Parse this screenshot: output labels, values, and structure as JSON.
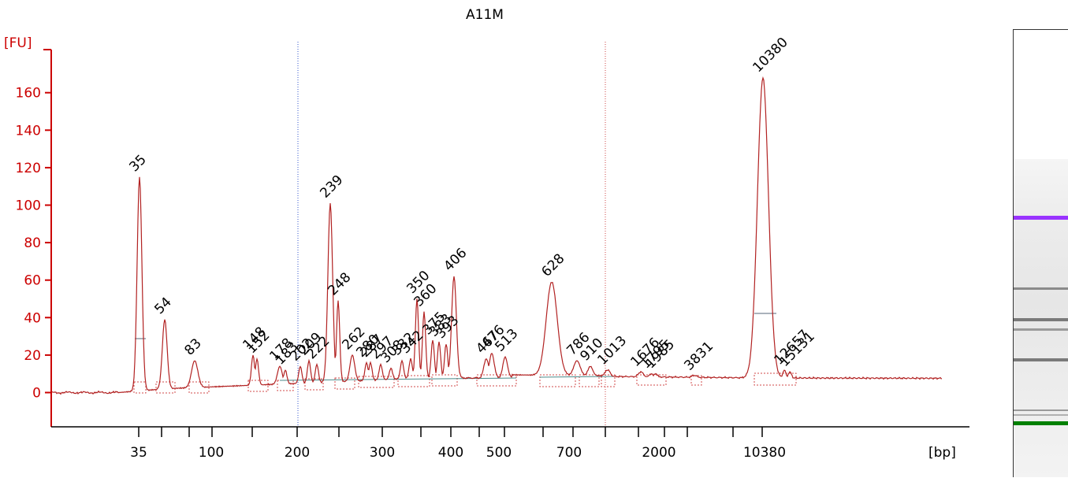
{
  "chart_data": {
    "type": "line",
    "title": "A11M",
    "ylabel": "[FU]",
    "xlabel": "[bp]",
    "ylim": [
      -15,
      175
    ],
    "yticks": [
      0,
      20,
      40,
      60,
      80,
      100,
      120,
      140,
      160
    ],
    "x_tick_labels": [
      "35",
      "100",
      "200",
      "300",
      "400",
      "500",
      "700",
      "2000",
      "10380"
    ],
    "grid": false,
    "marker_peaks": [
      {
        "label": "35",
        "fu": 115,
        "color": "#008000"
      },
      {
        "label": "10380",
        "fu": 168,
        "color": "#9933ff"
      }
    ],
    "peaks": [
      {
        "label": "54",
        "fu": 39
      },
      {
        "label": "83",
        "fu": 17
      },
      {
        "label": "148",
        "fu": 20
      },
      {
        "label": "152",
        "fu": 18
      },
      {
        "label": "178",
        "fu": 14
      },
      {
        "label": "183",
        "fu": 12
      },
      {
        "label": "202",
        "fu": 14
      },
      {
        "label": "209",
        "fu": 17
      },
      {
        "label": "222",
        "fu": 15
      },
      {
        "label": "239",
        "fu": 101
      },
      {
        "label": "248",
        "fu": 49
      },
      {
        "label": "262",
        "fu": 20
      },
      {
        "label": "280",
        "fu": 16
      },
      {
        "label": "287",
        "fu": 16
      },
      {
        "label": "297",
        "fu": 15
      },
      {
        "label": "308",
        "fu": 13
      },
      {
        "label": "332",
        "fu": 17
      },
      {
        "label": "342",
        "fu": 18
      },
      {
        "label": "350",
        "fu": 50
      },
      {
        "label": "360",
        "fu": 43
      },
      {
        "label": "375",
        "fu": 28
      },
      {
        "label": "383",
        "fu": 27
      },
      {
        "label": "393",
        "fu": 26
      },
      {
        "label": "406",
        "fu": 62
      },
      {
        "label": "467",
        "fu": 18
      },
      {
        "label": "476",
        "fu": 21
      },
      {
        "label": "513",
        "fu": 19
      },
      {
        "label": "628",
        "fu": 59
      },
      {
        "label": "786",
        "fu": 17
      },
      {
        "label": "910",
        "fu": 14
      },
      {
        "label": "1013",
        "fu": 12
      },
      {
        "label": "1676",
        "fu": 11
      },
      {
        "label": "1795",
        "fu": 10
      },
      {
        "label": "1985",
        "fu": 10
      },
      {
        "label": "3831",
        "fu": 9
      },
      {
        "label": "12657",
        "fu": 12
      },
      {
        "label": "15131",
        "fu": 11
      }
    ]
  },
  "gel": {
    "lower_marker_color": "#008000",
    "upper_marker_color": "#9933ff"
  }
}
